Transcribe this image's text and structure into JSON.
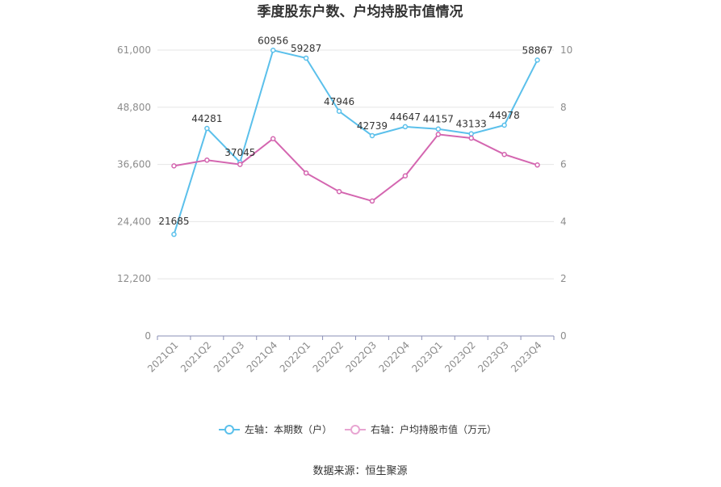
{
  "chart_data": {
    "type": "line",
    "title": "季度股东户数、户均持股市值情况",
    "categories": [
      "2021Q1",
      "2021Q2",
      "2021Q3",
      "2021Q4",
      "2022Q1",
      "2022Q2",
      "2022Q3",
      "2022Q4",
      "2023Q1",
      "2023Q2",
      "2023Q3",
      "2023Q4"
    ],
    "y_left": {
      "ticks": [
        "0",
        "12,200",
        "24,400",
        "36,600",
        "48,800",
        "61,000"
      ],
      "lim": [
        0,
        61000
      ]
    },
    "y_right": {
      "ticks": [
        "0",
        "2",
        "4",
        "6",
        "8",
        "10"
      ],
      "lim": [
        0,
        10
      ]
    },
    "series": [
      {
        "name": "左轴：本期数（户）",
        "axis": "left",
        "color": "#5bc0eb",
        "values": [
          21685,
          44281,
          37045,
          60956,
          59287,
          47946,
          42739,
          44647,
          44157,
          43133,
          44978,
          58867
        ],
        "labels": [
          "21685",
          "44281",
          "37045",
          "60956",
          "59287",
          "47946",
          "42739",
          "44647",
          "44157",
          "43133",
          "44978",
          "58867"
        ]
      },
      {
        "name": "右轴：户均持股市值（万元）",
        "axis": "right",
        "color": "#d466b0",
        "values": [
          5.95,
          6.15,
          6.0,
          6.9,
          5.7,
          5.05,
          4.72,
          5.6,
          7.05,
          6.92,
          6.35,
          5.98
        ]
      }
    ],
    "grid": true,
    "legend": "bottom-center"
  },
  "source": "数据来源：恒生聚源"
}
